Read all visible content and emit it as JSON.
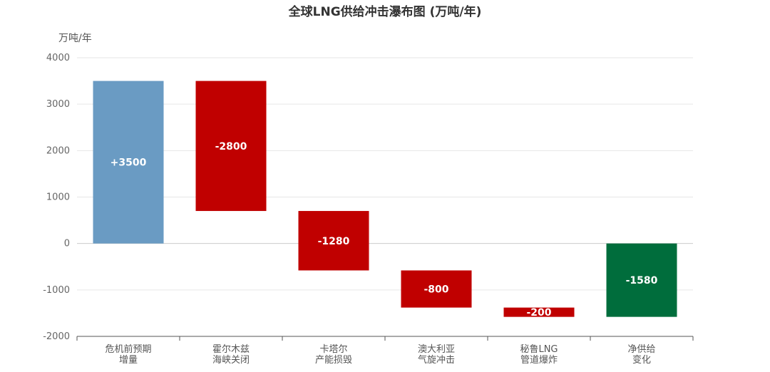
{
  "chart_data": {
    "type": "bar",
    "subtype": "waterfall",
    "title": "全球LNG供给冲击瀑布图 (万吨/年)",
    "ylabel": "万吨/年",
    "xlabel": "",
    "ylim": [
      -2000,
      4000
    ],
    "yticks": [
      4000,
      3000,
      2000,
      1000,
      0,
      -1000,
      -2000
    ],
    "grid": true,
    "legend": "none",
    "categories": [
      [
        "危机前预期",
        "增量"
      ],
      [
        "霍尔木兹",
        "海峡关闭"
      ],
      [
        "卡塔尔",
        "产能损毁"
      ],
      [
        "澳大利亚",
        "气旋冲击"
      ],
      [
        "秘鲁LNG",
        "管道爆炸"
      ],
      [
        "净供给",
        "变化"
      ]
    ],
    "bars": [
      {
        "start": 0,
        "end": 3500,
        "label": "+3500",
        "color": "#6a9bc3"
      },
      {
        "start": 3500,
        "end": 700,
        "label": "-2800",
        "color": "#c00000"
      },
      {
        "start": 700,
        "end": -580,
        "label": "-1280",
        "color": "#c00000"
      },
      {
        "start": -580,
        "end": -1380,
        "label": "-800",
        "color": "#c00000"
      },
      {
        "start": -1380,
        "end": -1580,
        "label": "-200",
        "color": "#c00000"
      },
      {
        "start": 0,
        "end": -1580,
        "label": "-1580",
        "color": "#006d3c"
      }
    ]
  }
}
